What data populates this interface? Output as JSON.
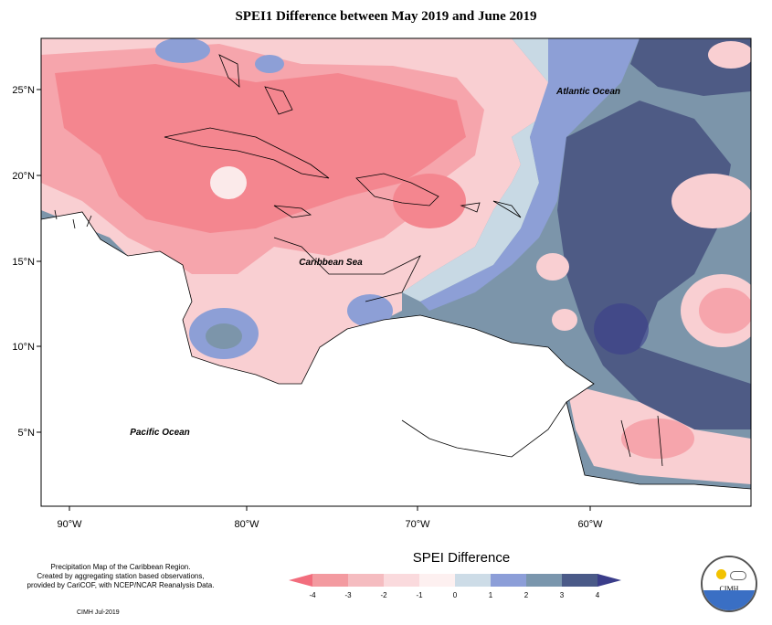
{
  "title": "SPEI1 Difference between May 2019 and June 2019",
  "axes": {
    "lon_ticks": [
      "90°W",
      "80°W",
      "70°W",
      "60°W"
    ],
    "lat_ticks": [
      "25°N",
      "20°N",
      "15°N",
      "10°N",
      "5°N"
    ]
  },
  "ocean_labels": {
    "atlantic": "Atlantic Ocean",
    "caribbean": "Caribbean Sea",
    "pacific": "Pacific Ocean"
  },
  "legend": {
    "title": "SPEI Difference",
    "ticks": [
      "-4",
      "-3",
      "-2",
      "-1",
      "0",
      "1",
      "2",
      "3",
      "4"
    ],
    "colors": [
      "#f26d7d",
      "#f39aa0",
      "#f5bcc0",
      "#fadadd",
      "#fdf0f0",
      "#cddce7",
      "#8c9ed8",
      "#7a96ad",
      "#4a5a88",
      "#3a3d8a"
    ]
  },
  "credits": {
    "line1": "Precipitation Map of the Caribbean Region.",
    "line2": "Created by aggregating station based observations,",
    "line3": "provided by CariCOF, with NCEP/NCAR Reanalysis Data.",
    "stamp": "CIMH Jul-2019"
  },
  "logo": {
    "text": "CIMH"
  },
  "palette": {
    "red_strong": "#f4868f",
    "red_mid": "#f6a5ac",
    "pink": "#f9cfd2",
    "white": "#fbeaea",
    "light_blue": "#c8d9e4",
    "blue": "#8d9fd6",
    "slate": "#7c95aa",
    "navy": "#4e5b85"
  }
}
